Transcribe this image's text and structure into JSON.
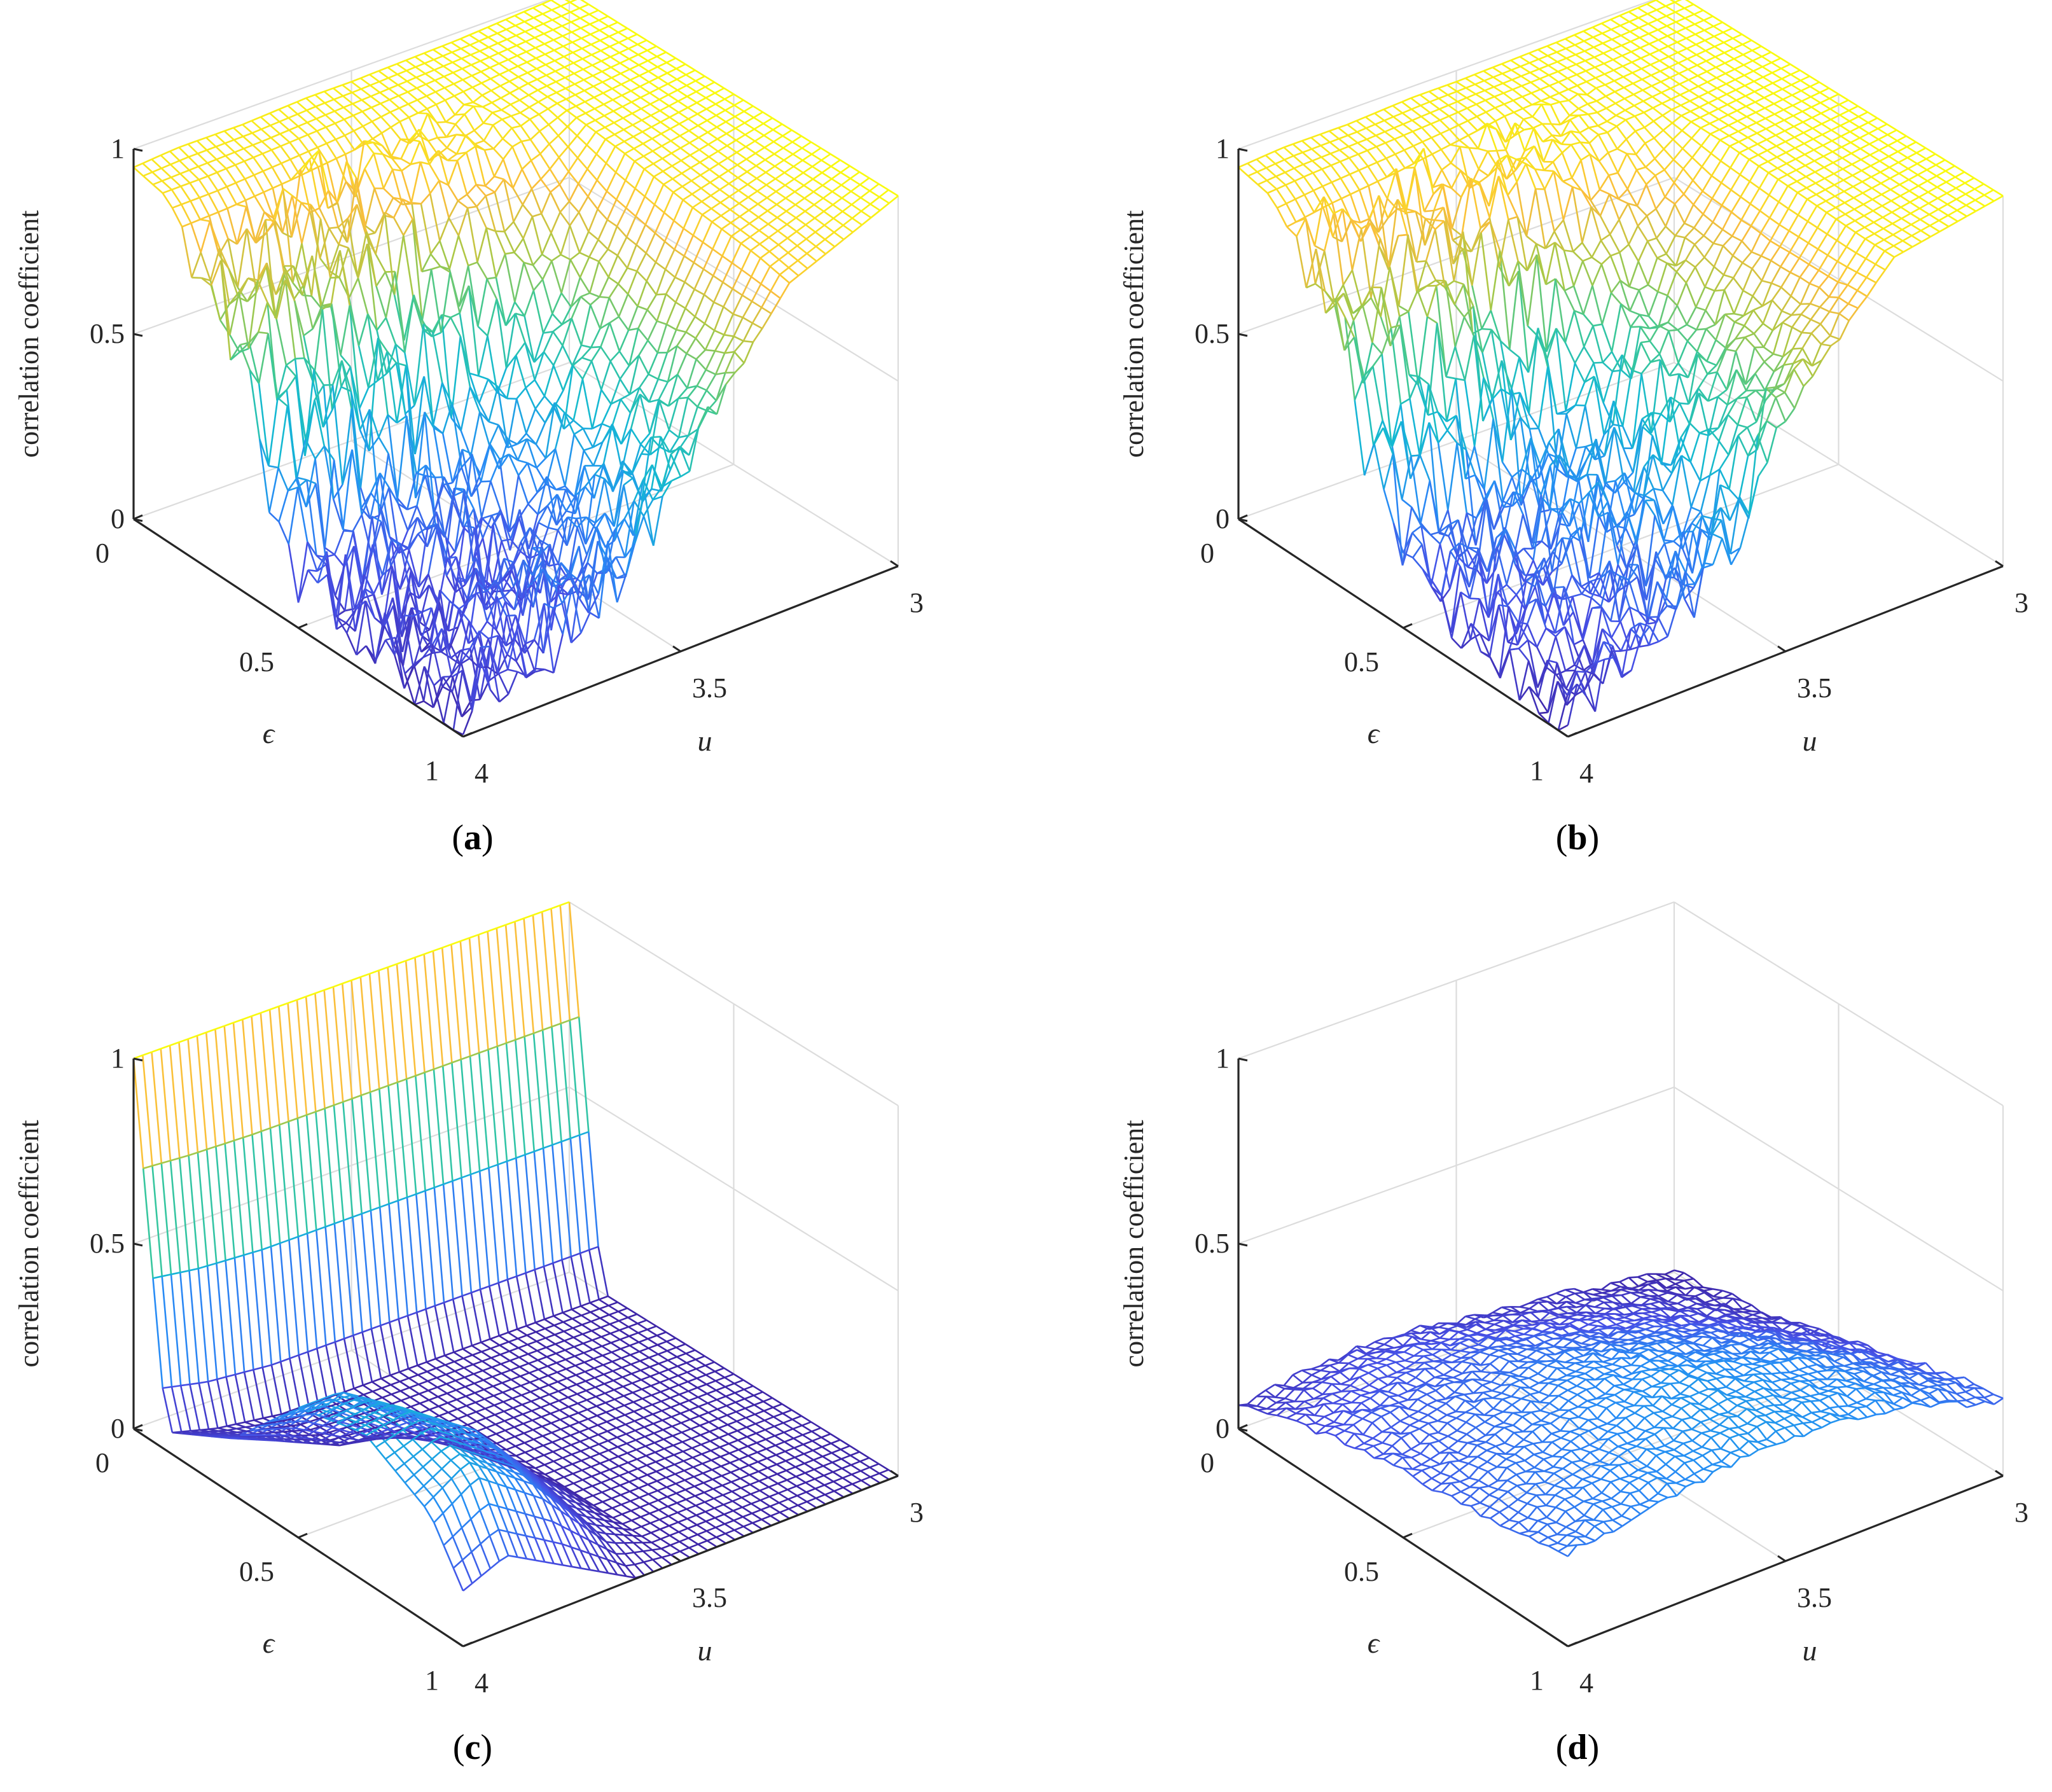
{
  "colors": {
    "low": "#3e26a8",
    "mid": "#2db5aa",
    "high": "#f9fb0e",
    "axis": "#262626",
    "grid": "#dcdcdc"
  },
  "chart_data": [
    {
      "type": "surface",
      "panel": "a",
      "caption_letter": "a",
      "zlabel": "correlation coefficient",
      "xlabel": "u",
      "ylabel": "ϵ",
      "xlim": [
        3,
        4
      ],
      "ylim": [
        0,
        1
      ],
      "zlim": [
        0,
        1
      ],
      "xticks": [
        "3",
        "3.5",
        "4"
      ],
      "yticks": [
        "0",
        "0.5",
        "1"
      ],
      "zticks": [
        "0",
        "0.5",
        "1"
      ],
      "grid": true,
      "colormap": "parula",
      "surface_description_values": {
        "u_grid": [
          3.0,
          3.25,
          3.5,
          3.6,
          3.75,
          3.9,
          4.0
        ],
        "eps_grid": [
          0.0,
          0.1,
          0.3,
          0.5,
          0.7,
          0.9,
          1.0
        ],
        "z": [
          [
            1.0,
            0.98,
            0.97,
            0.97,
            0.96,
            0.96,
            0.95
          ],
          [
            1.0,
            0.98,
            0.96,
            0.95,
            0.94,
            0.93,
            0.93
          ],
          [
            1.0,
            0.97,
            0.9,
            0.8,
            0.75,
            0.72,
            0.7
          ],
          [
            1.0,
            0.95,
            0.45,
            0.3,
            0.25,
            0.2,
            0.15
          ],
          [
            1.0,
            0.92,
            0.35,
            0.2,
            0.15,
            0.1,
            0.08
          ],
          [
            1.0,
            0.9,
            0.4,
            0.25,
            0.18,
            0.12,
            0.05
          ],
          [
            1.0,
            0.88,
            0.5,
            0.35,
            0.2,
            0.15,
            0.05
          ]
        ]
      }
    },
    {
      "type": "surface",
      "panel": "b",
      "caption_letter": "b",
      "zlabel": "correlation coefficient",
      "xlabel": "u",
      "ylabel": "ϵ",
      "xlim": [
        3,
        4
      ],
      "ylim": [
        0,
        1
      ],
      "zlim": [
        0,
        1
      ],
      "xticks": [
        "3",
        "3.5",
        "4"
      ],
      "yticks": [
        "0",
        "0.5",
        "1"
      ],
      "zticks": [
        "0",
        "0.5",
        "1"
      ],
      "grid": true,
      "colormap": "parula",
      "surface_description_values": {
        "u_grid": [
          3.0,
          3.25,
          3.5,
          3.6,
          3.75,
          3.9,
          4.0
        ],
        "eps_grid": [
          0.0,
          0.1,
          0.3,
          0.5,
          0.7,
          0.9,
          1.0
        ],
        "z": [
          [
            1.0,
            0.98,
            0.97,
            0.97,
            0.96,
            0.96,
            0.95
          ],
          [
            1.0,
            0.98,
            0.97,
            0.96,
            0.95,
            0.94,
            0.93
          ],
          [
            1.0,
            0.97,
            0.93,
            0.88,
            0.8,
            0.75,
            0.7
          ],
          [
            1.0,
            0.97,
            0.6,
            0.4,
            0.3,
            0.2,
            0.15
          ],
          [
            1.0,
            0.96,
            0.55,
            0.35,
            0.25,
            0.18,
            0.1
          ],
          [
            1.0,
            0.95,
            0.6,
            0.3,
            0.2,
            0.12,
            0.05
          ],
          [
            1.0,
            0.95,
            0.65,
            0.35,
            0.2,
            0.1,
            0.05
          ]
        ]
      }
    },
    {
      "type": "surface",
      "panel": "c",
      "caption_letter": "c",
      "zlabel": "correlation coefficient",
      "xlabel": "u",
      "ylabel": "ϵ",
      "xlim": [
        3,
        4
      ],
      "ylim": [
        0,
        1
      ],
      "zlim": [
        0,
        1
      ],
      "xticks": [
        "3",
        "3.5",
        "4"
      ],
      "yticks": [
        "0",
        "0.5",
        "1"
      ],
      "zticks": [
        "0",
        "0.5",
        "1"
      ],
      "grid": true,
      "colormap": "parula",
      "surface_description_values": {
        "u_grid": [
          3.0,
          3.25,
          3.5,
          3.6,
          3.75,
          3.9,
          4.0
        ],
        "eps_grid": [
          0.0,
          0.1,
          0.3,
          0.5,
          0.7,
          0.9,
          1.0
        ],
        "z": [
          [
            1.0,
            1.0,
            1.0,
            1.0,
            1.0,
            1.0,
            1.0
          ],
          [
            0.0,
            0.0,
            0.0,
            0.0,
            0.0,
            0.02,
            0.05
          ],
          [
            0.0,
            0.0,
            0.0,
            0.0,
            0.02,
            0.1,
            0.15
          ],
          [
            0.0,
            0.0,
            0.0,
            0.05,
            0.2,
            0.35,
            0.35
          ],
          [
            0.0,
            0.0,
            0.0,
            0.1,
            0.3,
            0.42,
            0.4
          ],
          [
            0.0,
            0.0,
            0.0,
            0.05,
            0.25,
            0.38,
            0.3
          ],
          [
            0.0,
            0.0,
            0.0,
            0.0,
            0.1,
            0.2,
            0.15
          ]
        ]
      }
    },
    {
      "type": "surface",
      "panel": "d",
      "caption_letter": "d",
      "zlabel": "correlation coefficient",
      "xlabel": "u",
      "ylabel": "ϵ",
      "xlim": [
        3,
        4
      ],
      "ylim": [
        0,
        1
      ],
      "zlim": [
        0,
        1
      ],
      "xticks": [
        "3",
        "3.5",
        "4"
      ],
      "yticks": [
        "0",
        "0.5",
        "1"
      ],
      "zticks": [
        "0",
        "0.5",
        "1"
      ],
      "grid": true,
      "colormap": "parula",
      "surface_description_values": {
        "u_grid": [
          3.0,
          3.25,
          3.5,
          3.6,
          3.75,
          3.9,
          4.0
        ],
        "eps_grid": [
          0.0,
          0.1,
          0.3,
          0.5,
          0.7,
          0.9,
          1.0
        ],
        "z": [
          [
            0.0,
            0.05,
            0.08,
            0.1,
            0.1,
            0.08,
            0.06
          ],
          [
            0.02,
            0.08,
            0.12,
            0.14,
            0.15,
            0.12,
            0.1
          ],
          [
            0.05,
            0.15,
            0.2,
            0.22,
            0.2,
            0.18,
            0.15
          ],
          [
            0.1,
            0.22,
            0.28,
            0.28,
            0.25,
            0.2,
            0.18
          ],
          [
            0.15,
            0.28,
            0.33,
            0.32,
            0.28,
            0.24,
            0.2
          ],
          [
            0.2,
            0.3,
            0.34,
            0.33,
            0.3,
            0.26,
            0.22
          ],
          [
            0.2,
            0.3,
            0.33,
            0.32,
            0.3,
            0.27,
            0.25
          ]
        ]
      }
    }
  ]
}
